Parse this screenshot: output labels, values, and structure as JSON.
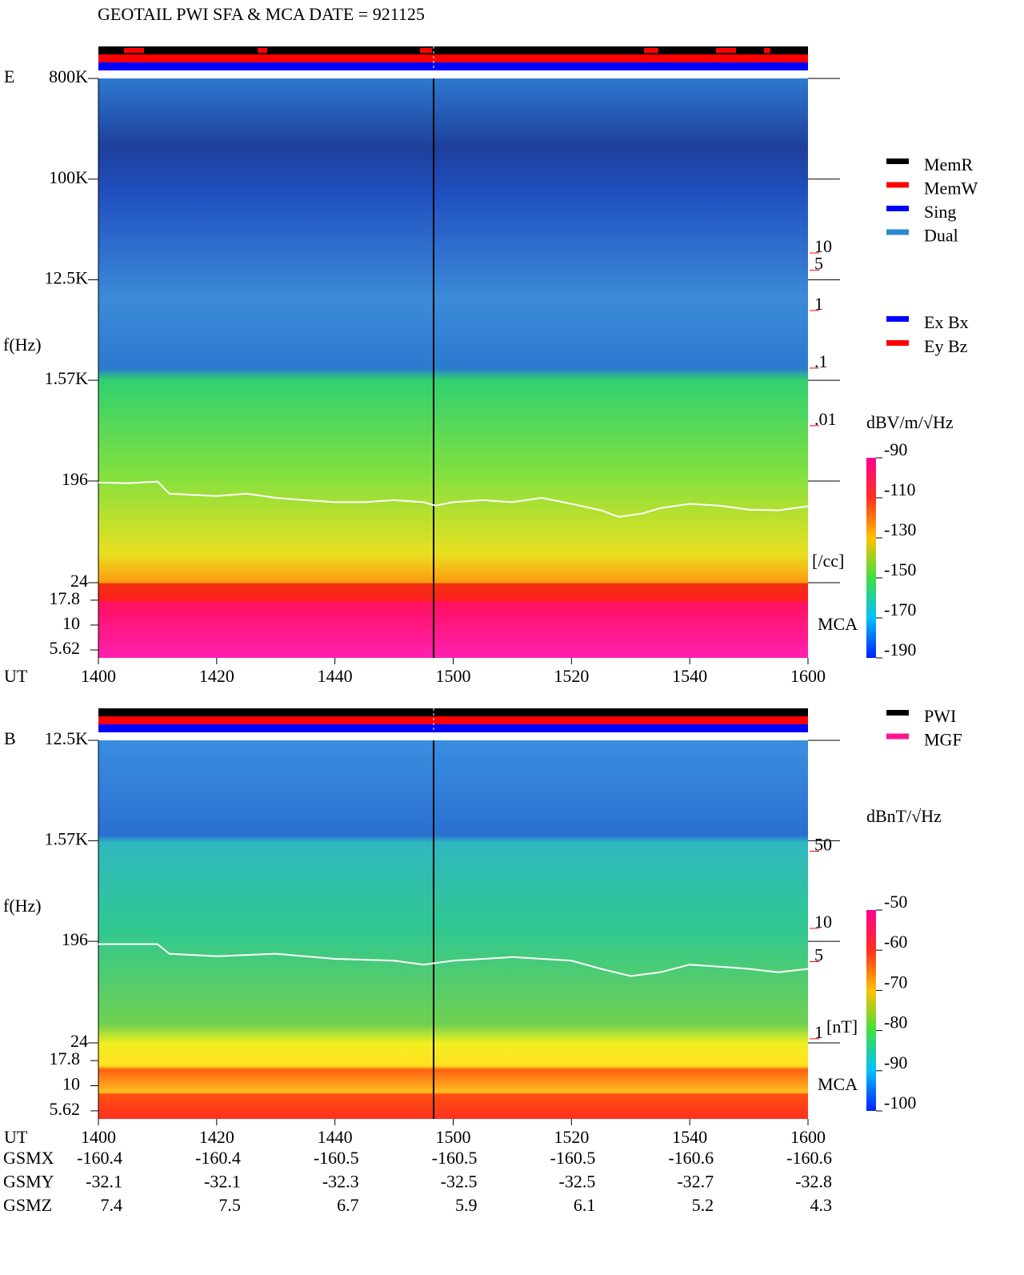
{
  "title": "GEOTAIL  PWI SFA & MCA   DATE = 921125",
  "chart_data": [
    {
      "type": "spectrogram",
      "panel_label": "E",
      "ylabel": "f(Hz)",
      "xlabel": "UT",
      "log_y": true,
      "ylim": [
        24,
        800000
      ],
      "yticks": [
        {
          "value": 800000,
          "label": "800K"
        },
        {
          "value": 100000,
          "label": "100K"
        },
        {
          "value": 12500,
          "label": "12.5K"
        },
        {
          "value": 1570,
          "label": "1.57K"
        },
        196,
        24
      ],
      "mca_label": "MCA",
      "mca_ylim": [
        4.67,
        26.7
      ],
      "mca_yticks": [
        17.8,
        10,
        5.62
      ],
      "xlim": [
        840,
        960
      ],
      "xticks": [
        {
          "value": 840,
          "label": "1400"
        },
        {
          "value": 860,
          "label": "1420"
        },
        {
          "value": 880,
          "label": "1440"
        },
        {
          "value": 900,
          "label": "1500"
        },
        {
          "value": 920,
          "label": "1520"
        },
        {
          "value": 940,
          "label": "1540"
        },
        {
          "value": 960,
          "label": "1600"
        }
      ],
      "y2lim": [
        9.3e-07,
        10700
      ],
      "y2ticks": [
        10,
        5,
        1,
        {
          "value": 0.1,
          "label": ".1"
        },
        {
          "value": 0.01,
          "label": ".01"
        }
      ],
      "y2_label": "[/cc]",
      "series": [
        {
          "color": "#ffffff",
          "axis": "y2",
          "x": [
            840,
            845,
            850,
            852,
            860,
            865,
            870,
            875,
            880,
            885,
            890,
            895,
            897,
            900,
            905,
            910,
            915,
            920,
            925,
            928,
            932,
            935,
            940,
            945,
            950,
            955,
            960
          ],
          "values": [
            0.00103,
            0.001,
            0.00107,
            0.00066,
            0.0006,
            0.00066,
            0.00056,
            0.00051,
            0.00047,
            0.00047,
            0.00051,
            0.00047,
            0.00041,
            0.00047,
            0.00051,
            0.00047,
            0.00056,
            0.00044,
            0.00034,
            0.00026,
            0.0003,
            0.00037,
            0.00044,
            0.00041,
            0.00035,
            0.00034,
            0.0004
          ]
        }
      ],
      "colorbar": {
        "label": "dBV/m/√Hz",
        "lim": [
          -190,
          -90
        ],
        "ticks": [
          -90,
          -110,
          -130,
          -150,
          -170,
          -190
        ]
      },
      "legend": [
        {
          "name": "MemR",
          "color": "#000000"
        },
        {
          "name": "MemW",
          "color": "#ff0000"
        },
        {
          "name": "Sing",
          "color": "#0000ff"
        },
        {
          "name": "Dual",
          "color": "#2a8ad0"
        }
      ],
      "antenna_legend": [
        {
          "name": "Ex Bx",
          "color": "#0000ff"
        },
        {
          "name": "Ey Bz",
          "color": "#ff0000"
        }
      ]
    },
    {
      "type": "spectrogram",
      "panel_label": "B",
      "ylabel": "f(Hz)",
      "xlabel": "UT",
      "log_y": true,
      "ylim": [
        24,
        12500
      ],
      "yticks": [
        {
          "value": 12500,
          "label": "12.5K"
        },
        {
          "value": 1570,
          "label": "1.57K"
        },
        196,
        24
      ],
      "mca_label": "MCA",
      "mca_ylim": [
        4.67,
        26.7
      ],
      "mca_yticks": [
        17.8,
        10,
        5.62
      ],
      "xlim": [
        840,
        960
      ],
      "xticks": [
        {
          "value": 840,
          "label": "1400"
        },
        {
          "value": 860,
          "label": "1420"
        },
        {
          "value": 880,
          "label": "1440"
        },
        {
          "value": 900,
          "label": "1500"
        },
        {
          "value": 920,
          "label": "1520"
        },
        {
          "value": 940,
          "label": "1540"
        },
        {
          "value": 960,
          "label": "1600"
        }
      ],
      "y2lim": [
        0.188,
        505
      ],
      "y2ticks": [
        50,
        10,
        5,
        1
      ],
      "y2_label": "[nT]",
      "series": [
        {
          "color": "#ffffff",
          "axis": "y2",
          "x": [
            840,
            850,
            852,
            860,
            870,
            880,
            890,
            895,
            900,
            910,
            920,
            925,
            930,
            935,
            940,
            945,
            950,
            955,
            960
          ],
          "values": [
            7.2,
            7.2,
            5.9,
            5.6,
            5.9,
            5.3,
            5.1,
            4.7,
            5.1,
            5.5,
            5.1,
            4.3,
            3.7,
            4.0,
            4.7,
            4.5,
            4.3,
            4.0,
            4.3
          ]
        }
      ],
      "colorbar": {
        "label": "dBnT/√Hz",
        "lim": [
          -100,
          -50
        ],
        "ticks": [
          -50,
          -60,
          -70,
          -80,
          -90,
          -100
        ]
      },
      "legend": [
        {
          "name": "PWI",
          "color": "#000000"
        },
        {
          "name": "MGF",
          "color": "#ff1493"
        }
      ]
    }
  ],
  "position_table": {
    "rows": [
      {
        "label": "GSMX",
        "values": [
          -160.4,
          -160.4,
          -160.5,
          -160.5,
          -160.5,
          -160.6,
          -160.6
        ]
      },
      {
        "label": "GSMY",
        "values": [
          -32.1,
          -32.1,
          -32.3,
          -32.5,
          -32.5,
          -32.7,
          -32.8
        ]
      },
      {
        "label": "GSMZ",
        "values": [
          7.4,
          7.5,
          6.7,
          5.9,
          6.1,
          5.2,
          4.3
        ]
      }
    ]
  }
}
